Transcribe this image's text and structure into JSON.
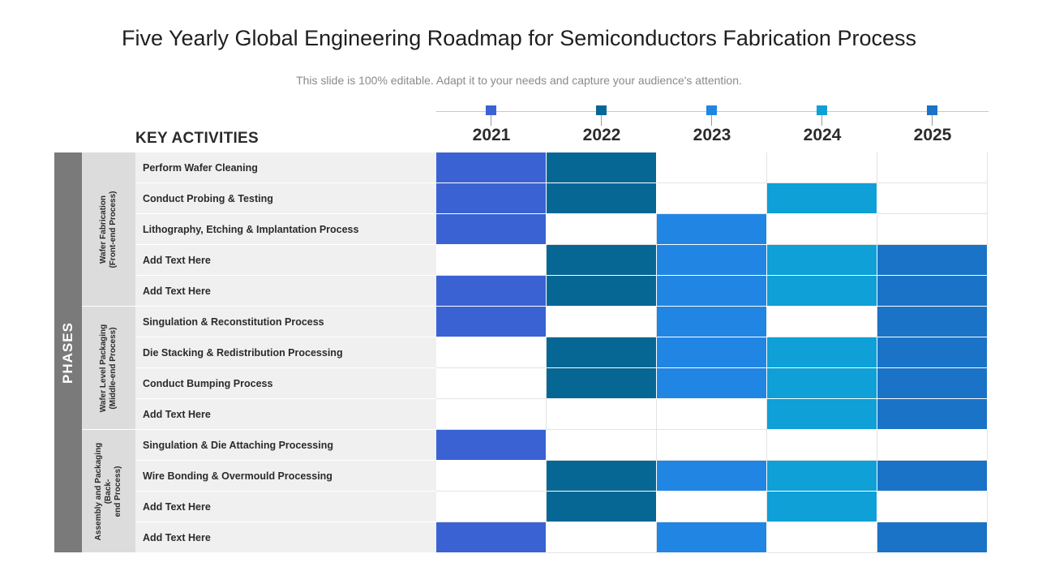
{
  "title": "Five Yearly Global Engineering Roadmap for Semiconductors Fabrication Process",
  "subtitle": "This slide is 100% editable. Adapt it to your needs and capture your audience's attention.",
  "key_activities_heading": "KEY ACTIVITIES",
  "phases_label": "PHASES",
  "years": [
    {
      "label": "2021",
      "color": "#3a62d3"
    },
    {
      "label": "2022",
      "color": "#066795"
    },
    {
      "label": "2023",
      "color": "#2186e3"
    },
    {
      "label": "2024",
      "color": "#0ea0d6"
    },
    {
      "label": "2025",
      "color": "#1a73c6"
    }
  ],
  "groups": [
    {
      "label_line1": "Wafer Fabrication",
      "label_line2": "(Front-end Process)"
    },
    {
      "label_line1": "Wafer Level Packaging",
      "label_line2": "(Middle-end Process)"
    },
    {
      "label_line1": "Assembly and Packaging (Back-",
      "label_line2": "end Process)"
    }
  ],
  "rows": [
    {
      "activity": "Perform Wafer Cleaning",
      "group": 0,
      "active": [
        1,
        1,
        0,
        0,
        0
      ]
    },
    {
      "activity": "Conduct Probing & Testing",
      "group": 0,
      "active": [
        1,
        1,
        0,
        1,
        0
      ]
    },
    {
      "activity": "Lithography, Etching & Implantation Process",
      "group": 0,
      "active": [
        1,
        0,
        1,
        0,
        0
      ]
    },
    {
      "activity": "Add Text Here",
      "group": 0,
      "active": [
        0,
        1,
        1,
        1,
        1
      ]
    },
    {
      "activity": "Add Text Here",
      "group": 0,
      "active": [
        1,
        1,
        1,
        1,
        1
      ]
    },
    {
      "activity": "Singulation & Reconstitution Process",
      "group": 1,
      "active": [
        1,
        0,
        1,
        0,
        1
      ]
    },
    {
      "activity": "Die Stacking & Redistribution Processing",
      "group": 1,
      "active": [
        0,
        1,
        1,
        1,
        1
      ]
    },
    {
      "activity": "Conduct Bumping Process",
      "group": 1,
      "active": [
        0,
        1,
        1,
        1,
        1
      ]
    },
    {
      "activity": "Add Text Here",
      "group": 1,
      "active": [
        0,
        0,
        0,
        1,
        1
      ]
    },
    {
      "activity": "Singulation & Die Attaching Processing",
      "group": 2,
      "active": [
        1,
        0,
        0,
        0,
        0
      ]
    },
    {
      "activity": "Wire Bonding & Overmould Processing",
      "group": 2,
      "active": [
        0,
        1,
        1,
        1,
        1
      ]
    },
    {
      "activity": "Add Text Here",
      "group": 2,
      "active": [
        0,
        1,
        0,
        1,
        0
      ]
    },
    {
      "activity": "Add Text Here",
      "group": 2,
      "active": [
        1,
        0,
        1,
        0,
        1
      ]
    }
  ]
}
